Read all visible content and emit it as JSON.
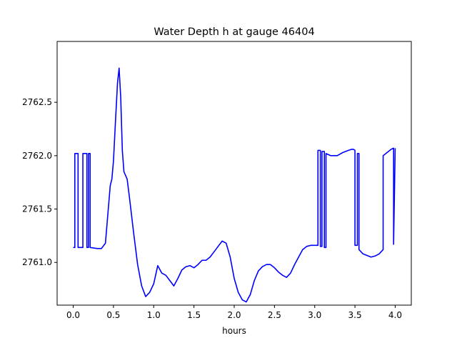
{
  "chart_data": {
    "type": "line",
    "title": "Water Depth h at gauge 46404",
    "xlabel": "hours",
    "ylabel": "",
    "xlim": [
      -0.2,
      4.2
    ],
    "ylim": [
      2760.6,
      2763.07
    ],
    "grid": false,
    "x_ticks": [
      0.0,
      0.5,
      1.0,
      1.5,
      2.0,
      2.5,
      3.0,
      3.5,
      4.0
    ],
    "x_tick_labels": [
      "0.0",
      "0.5",
      "1.0",
      "1.5",
      "2.0",
      "2.5",
      "3.0",
      "3.5",
      "4.0"
    ],
    "y_ticks": [
      2761.0,
      2761.5,
      2762.0,
      2762.5
    ],
    "y_tick_labels": [
      "2761.0",
      "2761.5",
      "2762.0",
      "2762.5"
    ],
    "series": [
      {
        "color": "#0000ff",
        "x": [
          0.0,
          0.02,
          0.02,
          0.06,
          0.06,
          0.12,
          0.12,
          0.17,
          0.17,
          0.19,
          0.19,
          0.21,
          0.21,
          0.3,
          0.35,
          0.4,
          0.43,
          0.46,
          0.48,
          0.5,
          0.52,
          0.55,
          0.57,
          0.59,
          0.61,
          0.63,
          0.67,
          0.7,
          0.75,
          0.8,
          0.85,
          0.9,
          0.95,
          1.0,
          1.05,
          1.1,
          1.15,
          1.2,
          1.25,
          1.3,
          1.35,
          1.4,
          1.45,
          1.5,
          1.55,
          1.6,
          1.65,
          1.7,
          1.75,
          1.8,
          1.85,
          1.9,
          1.95,
          2.0,
          2.05,
          2.1,
          2.15,
          2.2,
          2.25,
          2.3,
          2.35,
          2.4,
          2.45,
          2.5,
          2.55,
          2.6,
          2.65,
          2.7,
          2.75,
          2.8,
          2.85,
          2.9,
          2.95,
          3.0,
          3.04,
          3.04,
          3.07,
          3.07,
          3.09,
          3.09,
          3.12,
          3.12,
          3.14,
          3.14,
          3.2,
          3.28,
          3.35,
          3.42,
          3.46,
          3.48,
          3.5,
          3.5,
          3.53,
          3.53,
          3.55,
          3.55,
          3.6,
          3.7,
          3.75,
          3.8,
          3.85,
          3.85,
          3.9,
          3.95,
          3.98,
          3.98,
          4.0
        ],
        "y": [
          2761.14,
          2761.14,
          2762.02,
          2762.02,
          2761.14,
          2761.14,
          2762.02,
          2762.02,
          2761.14,
          2761.14,
          2762.02,
          2762.02,
          2761.14,
          2761.13,
          2761.13,
          2761.18,
          2761.45,
          2761.72,
          2761.78,
          2761.95,
          2762.25,
          2762.68,
          2762.82,
          2762.55,
          2762.05,
          2761.85,
          2761.78,
          2761.6,
          2761.28,
          2760.98,
          2760.78,
          2760.68,
          2760.72,
          2760.8,
          2760.97,
          2760.9,
          2760.88,
          2760.83,
          2760.78,
          2760.85,
          2760.93,
          2760.96,
          2760.97,
          2760.95,
          2760.98,
          2761.02,
          2761.02,
          2761.05,
          2761.1,
          2761.15,
          2761.2,
          2761.18,
          2761.05,
          2760.85,
          2760.72,
          2760.65,
          2760.63,
          2760.7,
          2760.83,
          2760.92,
          2760.96,
          2760.98,
          2760.98,
          2760.95,
          2760.91,
          2760.88,
          2760.86,
          2760.9,
          2760.98,
          2761.05,
          2761.12,
          2761.15,
          2761.16,
          2761.16,
          2761.16,
          2762.05,
          2762.05,
          2761.15,
          2761.15,
          2762.04,
          2762.04,
          2761.14,
          2761.14,
          2762.02,
          2762.0,
          2762.0,
          2762.03,
          2762.05,
          2762.06,
          2762.06,
          2762.05,
          2761.16,
          2761.16,
          2762.02,
          2762.02,
          2761.12,
          2761.08,
          2761.05,
          2761.06,
          2761.08,
          2761.12,
          2762.0,
          2762.03,
          2762.06,
          2762.07,
          2761.17,
          2762.07
        ]
      }
    ]
  }
}
